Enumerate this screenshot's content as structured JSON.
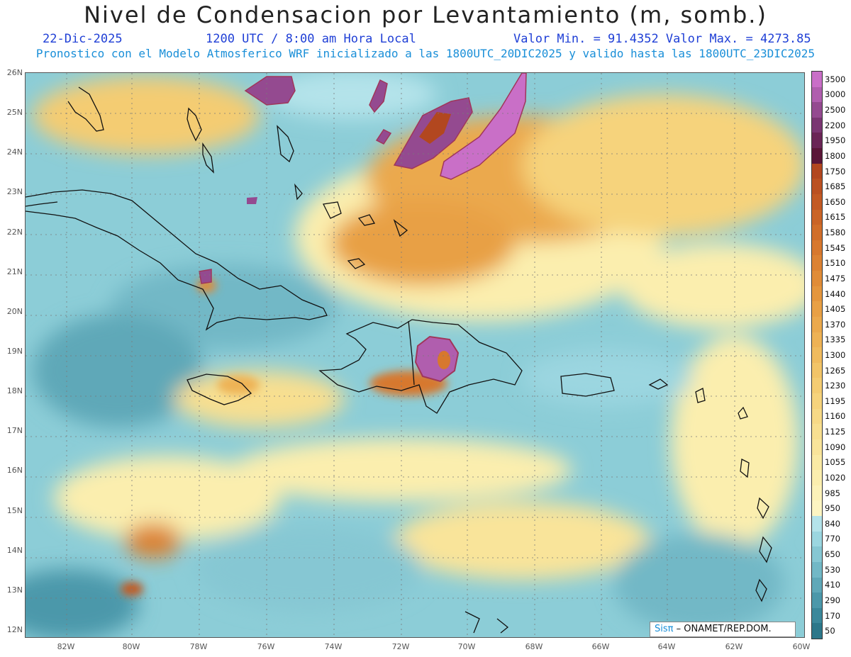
{
  "header": {
    "title": "Nivel de Condensacion por Levantamiento (m, somb.)",
    "date": "22-Dic-2025",
    "time": "1200 UTC / 8:00 am Hora Local",
    "stats": "Valor Min. = 91.4352  Valor Max. = 4273.85",
    "run_info": "Pronostico con el Modelo Atmosferico WRF inicializado a las 1800UTC_20DIC2025 y valido hasta las  1800UTC_23DIC2025"
  },
  "map": {
    "lat_range": [
      12,
      26
    ],
    "lon_range": [
      -83,
      -60
    ],
    "lat_labels": [
      "26N",
      "25N",
      "24N",
      "23N",
      "22N",
      "21N",
      "20N",
      "19N",
      "18N",
      "17N",
      "16N",
      "15N",
      "14N",
      "13N",
      "12N"
    ],
    "lon_labels": [
      "82W",
      "80W",
      "78W",
      "76W",
      "74W",
      "72W",
      "70W",
      "68W",
      "66W",
      "64W",
      "62W",
      "60W"
    ],
    "grid": "dashed"
  },
  "legend": {
    "labels": [
      "3500",
      "3000",
      "2500",
      "2200",
      "1950",
      "1800",
      "1750",
      "1685",
      "1650",
      "1615",
      "1580",
      "1545",
      "1510",
      "1475",
      "1440",
      "1405",
      "1370",
      "1335",
      "1300",
      "1265",
      "1230",
      "1195",
      "1160",
      "1125",
      "1090",
      "1055",
      "1020",
      "985",
      "950",
      "840",
      "770",
      "650",
      "530",
      "410",
      "290",
      "170",
      "50"
    ],
    "colors": [
      "#c96fc7",
      "#b05eae",
      "#944a90",
      "#7a3672",
      "#6a2556",
      "#5a1638",
      "#b2471f",
      "#bb5122",
      "#c35a24",
      "#ca6427",
      "#d16e2a",
      "#d7782e",
      "#dc8233",
      "#e08c38",
      "#e4963e",
      "#e8a045",
      "#eba94d",
      "#eeb255",
      "#f0bb5e",
      "#f2c468",
      "#f4cc72",
      "#f6d37c",
      "#f7d986",
      "#f8df90",
      "#f9e49a",
      "#faeaa4",
      "#fbeeae",
      "#fcf2b8",
      "#fdf5c2",
      "#b4e3ea",
      "#9bd6e0",
      "#86c7d3",
      "#72b8c6",
      "#5fa8b8",
      "#4c98aa",
      "#3b889b",
      "#2c778a"
    ]
  },
  "footer": {
    "brand": "Sisπ",
    "org": "– ONAMET/REP.DOM."
  }
}
